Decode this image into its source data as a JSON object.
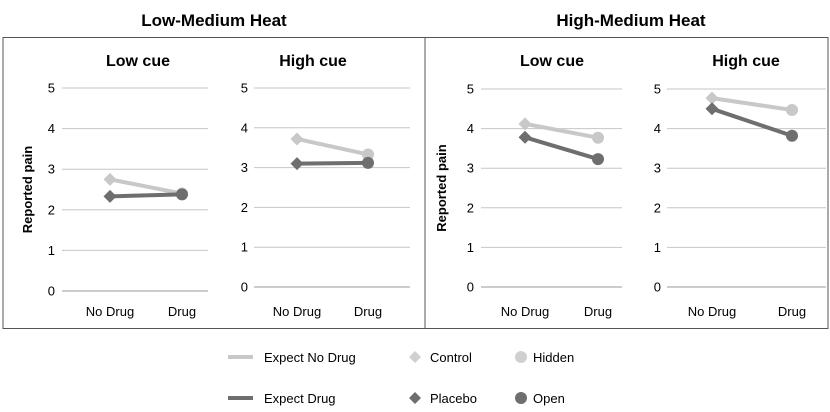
{
  "figure": {
    "group_titles": [
      "Low-Medium Heat",
      "High-Medium Heat"
    ],
    "legend": {
      "lines": [
        {
          "label": "Expect No Drug",
          "color": "#c8c8c8"
        },
        {
          "label": "Expect Drug",
          "color": "#6e6e6e"
        }
      ],
      "markers": [
        {
          "label": "Control",
          "shape": "diamond",
          "color": "#d0d0d0"
        },
        {
          "label": "Hidden",
          "shape": "circle",
          "color": "#d0d0d0"
        },
        {
          "label": "Placebo",
          "shape": "diamond",
          "color": "#6e6e6e"
        },
        {
          "label": "Open",
          "shape": "circle",
          "color": "#6e6e6e"
        }
      ]
    }
  },
  "chart_data": [
    {
      "type": "line",
      "group": "Low-Medium Heat",
      "title": "Low cue",
      "categories": [
        "No Drug",
        "Drug"
      ],
      "ylabel": "Reported pain",
      "ylim": [
        0,
        5
      ],
      "yticks": [
        0,
        1,
        2,
        3,
        4,
        5
      ],
      "series": [
        {
          "name": "Expect No Drug",
          "values": [
            2.75,
            2.4
          ],
          "markers": [
            "diamond",
            "circle"
          ],
          "color": "#c8c8c8"
        },
        {
          "name": "Expect Drug",
          "values": [
            2.33,
            2.38
          ],
          "markers": [
            "diamond",
            "circle"
          ],
          "color": "#6e6e6e"
        }
      ]
    },
    {
      "type": "line",
      "group": "Low-Medium Heat",
      "title": "High cue",
      "categories": [
        "No Drug",
        "Drug"
      ],
      "ylabel": "",
      "ylim": [
        0,
        5
      ],
      "yticks": [
        0,
        1,
        2,
        3,
        4,
        5
      ],
      "series": [
        {
          "name": "Expect No Drug",
          "values": [
            3.72,
            3.33
          ],
          "markers": [
            "diamond",
            "circle"
          ],
          "color": "#c8c8c8"
        },
        {
          "name": "Expect Drug",
          "values": [
            3.1,
            3.12
          ],
          "markers": [
            "diamond",
            "circle"
          ],
          "color": "#6e6e6e"
        }
      ]
    },
    {
      "type": "line",
      "group": "High-Medium Heat",
      "title": "Low cue",
      "categories": [
        "No Drug",
        "Drug"
      ],
      "ylabel": "Reported pain",
      "ylim": [
        0,
        5
      ],
      "yticks": [
        0,
        1,
        2,
        3,
        4,
        5
      ],
      "series": [
        {
          "name": "Expect No Drug",
          "values": [
            4.12,
            3.77
          ],
          "markers": [
            "diamond",
            "circle"
          ],
          "color": "#c8c8c8"
        },
        {
          "name": "Expect Drug",
          "values": [
            3.78,
            3.23
          ],
          "markers": [
            "diamond",
            "circle"
          ],
          "color": "#6e6e6e"
        }
      ]
    },
    {
      "type": "line",
      "group": "High-Medium Heat",
      "title": "High cue",
      "categories": [
        "No Drug",
        "Drug"
      ],
      "ylabel": "",
      "ylim": [
        0,
        5
      ],
      "yticks": [
        0,
        1,
        2,
        3,
        4,
        5
      ],
      "series": [
        {
          "name": "Expect No Drug",
          "values": [
            4.77,
            4.47
          ],
          "markers": [
            "diamond",
            "circle"
          ],
          "color": "#c8c8c8"
        },
        {
          "name": "Expect Drug",
          "values": [
            4.5,
            3.82
          ],
          "markers": [
            "diamond",
            "circle"
          ],
          "color": "#6e6e6e"
        }
      ]
    }
  ]
}
